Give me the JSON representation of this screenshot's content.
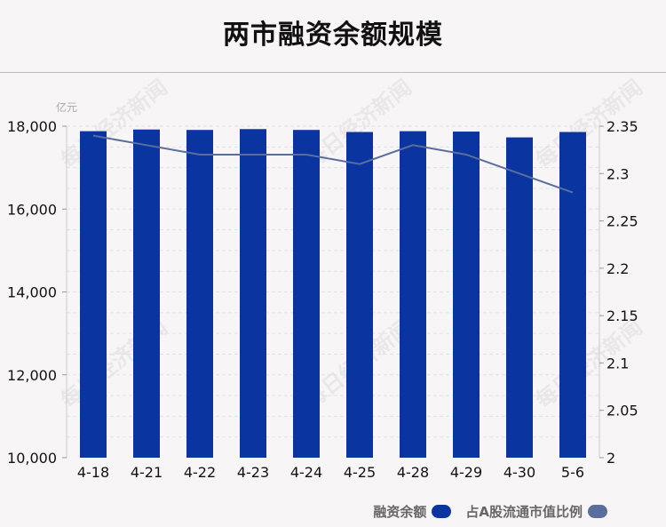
{
  "title": "两市融资余额规模",
  "watermark": "每日经济新闻",
  "chart_data": {
    "type": "bar",
    "title": "两市融资余额规模",
    "categories": [
      "4-18",
      "4-21",
      "4-22",
      "4-23",
      "4-24",
      "4-25",
      "4-28",
      "4-29",
      "4-30",
      "5-6"
    ],
    "y_unit": "亿元",
    "ylim": [
      10000,
      18000
    ],
    "y_ticks": [
      "18,000",
      "16,000",
      "14,000",
      "12,000",
      "10,000"
    ],
    "y2lim": [
      2,
      2.35
    ],
    "y2_ticks": [
      "2.35",
      "2.3",
      "2.25",
      "2.2",
      "2.15",
      "2.1",
      "2.05",
      "2"
    ],
    "series": [
      {
        "name": "融资余额",
        "kind": "bar",
        "axis": "left",
        "color": "#0a35a0",
        "values": [
          17880,
          17920,
          17910,
          17930,
          17910,
          17860,
          17880,
          17870,
          17730,
          17860
        ]
      },
      {
        "name": "占A股流通市值比例",
        "kind": "line",
        "axis": "right",
        "color": "#5a6e9c",
        "values": [
          2.34,
          2.33,
          2.32,
          2.32,
          2.32,
          2.31,
          2.33,
          2.32,
          2.3,
          2.28
        ]
      }
    ],
    "grid": true,
    "legend_position": "bottom-right"
  }
}
